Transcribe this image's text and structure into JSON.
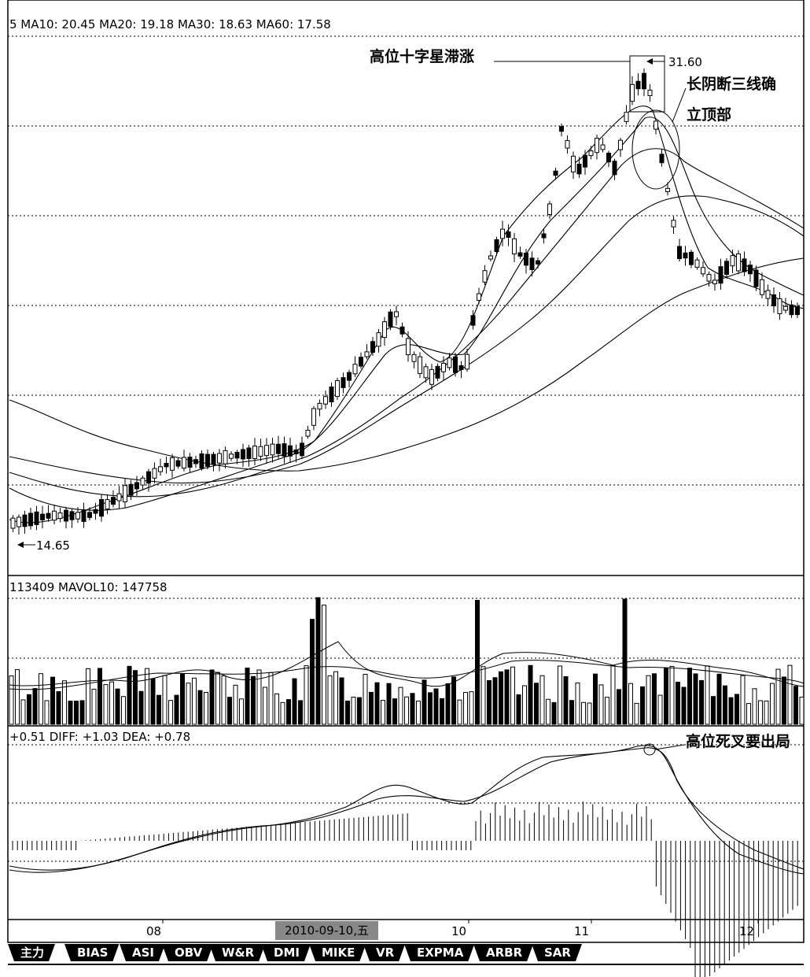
{
  "main_header": "5 MA10: 20.45 MA20: 19.18 MA30: 18.63 MA60: 17.58",
  "volume_header": "113409 MAVOL10: 147758",
  "macd_header": "+0.51 DIFF: +1.03 DEA: +0.78",
  "annotations": {
    "high_cross": "高位十字星滞涨",
    "price_high": "31.60",
    "long_yin_1": "长阴断三线确",
    "long_yin_2": "立顶部",
    "price_low": "14.65",
    "death_cross": "高位死叉要出局"
  },
  "x_axis": {
    "months": [
      "08",
      "10",
      "11",
      "12"
    ],
    "cursor_date": "2010-09-10,五"
  },
  "tabs": [
    "主力",
    "BIAS",
    "ASI",
    "OBV",
    "W&R",
    "DMI",
    "MIKE",
    "VR",
    "EXPMA",
    "ARBR",
    "SAR"
  ],
  "colors": {
    "background": "#ffffff",
    "foreground": "#000000",
    "grid": "#000000",
    "badge": "#888888"
  },
  "chart_data": {
    "type": "candlestick",
    "indicators": {
      "MA10": 20.45,
      "MA20": 19.18,
      "MA30": 18.63,
      "MA60": 17.58,
      "VOLUME": 113409,
      "MAVOL10": 147758,
      "MACD": 0.51,
      "DIFF": 1.03,
      "DEA": 0.78
    },
    "price_high": 31.6,
    "price_low": 14.65
  }
}
